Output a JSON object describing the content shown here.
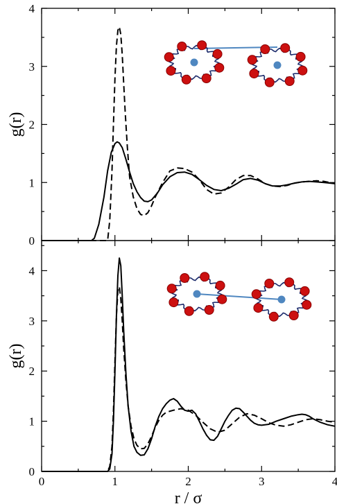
{
  "chart_data": [
    {
      "type": "line",
      "xlabel": "",
      "ylabel": "g(r)",
      "xlim": [
        0,
        4
      ],
      "ylim": [
        0,
        4
      ],
      "yticks": [
        "0",
        "1",
        "2",
        "3",
        "4"
      ],
      "xticks": [],
      "inset": "particle-pair-centers-connected",
      "series": [
        {
          "style": "solid",
          "color": "#000000",
          "x": [
            0.0,
            0.5,
            0.68,
            0.72,
            0.78,
            0.85,
            0.9,
            0.95,
            1.0,
            1.03,
            1.06,
            1.1,
            1.15,
            1.2,
            1.25,
            1.3,
            1.35,
            1.4,
            1.45,
            1.5,
            1.58,
            1.65,
            1.75,
            1.85,
            1.95,
            2.05,
            2.15,
            2.25,
            2.35,
            2.45,
            2.55,
            2.65,
            2.75,
            2.85,
            2.95,
            3.05,
            3.15,
            3.25,
            3.35,
            3.45,
            3.55,
            3.65,
            3.75,
            3.85,
            4.0
          ],
          "y": [
            0.0,
            0.0,
            0.0,
            0.04,
            0.28,
            0.75,
            1.2,
            1.52,
            1.67,
            1.7,
            1.68,
            1.6,
            1.4,
            1.18,
            0.98,
            0.84,
            0.74,
            0.68,
            0.67,
            0.7,
            0.82,
            0.96,
            1.1,
            1.17,
            1.18,
            1.14,
            1.05,
            0.95,
            0.88,
            0.86,
            0.9,
            0.97,
            1.05,
            1.07,
            1.04,
            0.98,
            0.94,
            0.94,
            0.96,
            0.99,
            1.01,
            1.02,
            1.01,
            1.0,
            0.98
          ]
        },
        {
          "style": "dashed",
          "color": "#000000",
          "x": [
            0.0,
            0.5,
            0.9,
            0.93,
            0.96,
            0.98,
            1.0,
            1.02,
            1.04,
            1.06,
            1.08,
            1.1,
            1.12,
            1.14,
            1.17,
            1.2,
            1.25,
            1.3,
            1.35,
            1.4,
            1.45,
            1.5,
            1.55,
            1.65,
            1.75,
            1.85,
            1.95,
            2.05,
            2.15,
            2.25,
            2.35,
            2.45,
            2.55,
            2.65,
            2.75,
            2.85,
            2.95,
            3.05,
            3.15,
            3.25,
            3.35,
            3.45,
            3.55,
            3.65,
            3.75,
            3.85,
            4.0
          ],
          "y": [
            0.0,
            0.0,
            0.0,
            0.35,
            1.2,
            2.0,
            2.8,
            3.35,
            3.62,
            3.68,
            3.55,
            3.2,
            2.7,
            2.2,
            1.6,
            1.1,
            0.75,
            0.55,
            0.45,
            0.43,
            0.48,
            0.6,
            0.75,
            1.0,
            1.2,
            1.25,
            1.24,
            1.18,
            1.05,
            0.88,
            0.8,
            0.82,
            0.92,
            1.05,
            1.12,
            1.12,
            1.06,
            0.98,
            0.94,
            0.93,
            0.95,
            0.99,
            1.01,
            1.02,
            1.03,
            1.02,
            0.98
          ]
        }
      ]
    },
    {
      "type": "line",
      "xlabel": "r / σ",
      "ylabel": "g(r)",
      "xlim": [
        0,
        4
      ],
      "ylim": [
        0,
        4.6
      ],
      "yticks": [
        "0",
        "1",
        "2",
        "3",
        "4"
      ],
      "xticks": [
        "0",
        "1",
        "2",
        "3",
        "4"
      ],
      "inset": "particle-pair-centers-connected",
      "series": [
        {
          "style": "solid",
          "color": "#000000",
          "x": [
            0.0,
            0.5,
            0.9,
            0.93,
            0.96,
            0.98,
            1.0,
            1.02,
            1.04,
            1.06,
            1.08,
            1.1,
            1.12,
            1.15,
            1.18,
            1.22,
            1.26,
            1.3,
            1.35,
            1.4,
            1.45,
            1.5,
            1.55,
            1.6,
            1.65,
            1.7,
            1.75,
            1.8,
            1.85,
            1.9,
            1.95,
            2.0,
            2.05,
            2.1,
            2.15,
            2.2,
            2.25,
            2.3,
            2.35,
            2.4,
            2.45,
            2.5,
            2.55,
            2.6,
            2.65,
            2.7,
            2.75,
            2.8,
            2.85,
            2.9,
            2.95,
            3.0,
            3.1,
            3.2,
            3.3,
            3.4,
            3.5,
            3.55,
            3.6,
            3.65,
            3.7,
            3.8,
            3.9,
            4.0
          ],
          "y": [
            0.0,
            0.0,
            0.0,
            0.05,
            0.35,
            1.0,
            2.0,
            3.1,
            3.9,
            4.25,
            4.1,
            3.5,
            2.8,
            1.95,
            1.3,
            0.8,
            0.5,
            0.38,
            0.32,
            0.33,
            0.45,
            0.65,
            0.9,
            1.1,
            1.25,
            1.35,
            1.42,
            1.45,
            1.4,
            1.3,
            1.22,
            1.2,
            1.22,
            1.15,
            1.0,
            0.85,
            0.72,
            0.63,
            0.62,
            0.7,
            0.85,
            1.0,
            1.12,
            1.22,
            1.26,
            1.25,
            1.18,
            1.1,
            1.02,
            0.96,
            0.93,
            0.92,
            0.94,
            1.0,
            1.05,
            1.1,
            1.13,
            1.14,
            1.13,
            1.1,
            1.05,
            0.98,
            0.93,
            0.9
          ]
        },
        {
          "style": "dashed",
          "color": "#000000",
          "x": [
            0.0,
            0.5,
            0.9,
            0.93,
            0.96,
            0.98,
            1.0,
            1.02,
            1.04,
            1.06,
            1.08,
            1.1,
            1.12,
            1.15,
            1.18,
            1.22,
            1.26,
            1.3,
            1.35,
            1.4,
            1.45,
            1.5,
            1.55,
            1.6,
            1.65,
            1.7,
            1.8,
            1.9,
            2.0,
            2.1,
            2.2,
            2.3,
            2.4,
            2.5,
            2.6,
            2.7,
            2.8,
            2.9,
            3.0,
            3.1,
            3.2,
            3.3,
            3.4,
            3.5,
            3.6,
            3.7,
            3.8,
            3.9,
            4.0
          ],
          "y": [
            0.0,
            0.0,
            0.0,
            0.1,
            0.5,
            1.2,
            2.2,
            3.1,
            3.6,
            3.68,
            3.45,
            3.0,
            2.45,
            1.8,
            1.3,
            0.9,
            0.65,
            0.52,
            0.45,
            0.46,
            0.55,
            0.7,
            0.88,
            1.02,
            1.12,
            1.18,
            1.22,
            1.25,
            1.22,
            1.12,
            0.98,
            0.85,
            0.78,
            0.82,
            0.95,
            1.08,
            1.15,
            1.12,
            1.05,
            0.97,
            0.92,
            0.9,
            0.93,
            0.98,
            1.03,
            1.05,
            1.03,
            1.0,
            0.98
          ]
        }
      ]
    }
  ],
  "colors": {
    "bead": "#cc1010",
    "bead_dark": "#8a0000",
    "center": "#4f87c0",
    "connector": "#4f87c0",
    "chain": "#1b2a6b"
  }
}
